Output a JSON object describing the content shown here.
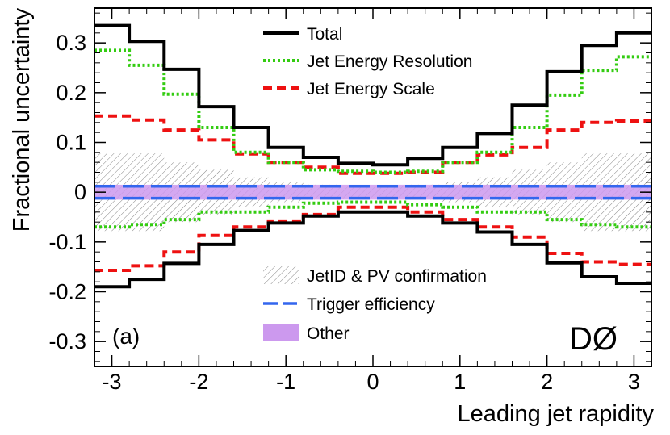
{
  "chart_data": {
    "type": "line",
    "panel_label": "(a)",
    "experiment_label": "DØ",
    "xlabel": "Leading jet rapidity",
    "ylabel": "Fractional uncertainty",
    "xlim": [
      -3.2,
      3.2
    ],
    "ylim": [
      -0.35,
      0.37
    ],
    "xticks": [
      -3,
      -2,
      -1,
      0,
      1,
      2,
      3
    ],
    "yticks": [
      -0.3,
      -0.2,
      -0.1,
      0,
      0.1,
      0.2,
      0.3
    ],
    "ytick_labels": [
      "-0.3",
      "-0.2",
      "-0.1",
      "0",
      "0.1",
      "0.2",
      "0.3"
    ],
    "bin_edges": [
      -3.2,
      -2.8,
      -2.4,
      -2.0,
      -1.6,
      -1.2,
      -0.8,
      -0.4,
      0.0,
      0.4,
      0.8,
      1.2,
      1.6,
      2.0,
      2.4,
      2.8,
      3.2
    ],
    "series": [
      {
        "name": "Total",
        "style": "solid",
        "color": "#000000",
        "upper": [
          0.335,
          0.303,
          0.247,
          0.172,
          0.13,
          0.09,
          0.07,
          0.058,
          0.055,
          0.068,
          0.09,
          0.118,
          0.175,
          0.242,
          0.295,
          0.32
        ],
        "lower": [
          -0.19,
          -0.175,
          -0.143,
          -0.105,
          -0.077,
          -0.062,
          -0.048,
          -0.04,
          -0.04,
          -0.048,
          -0.062,
          -0.08,
          -0.105,
          -0.142,
          -0.17,
          -0.183
        ]
      },
      {
        "name": "Jet Energy Resolution",
        "style": "dotted",
        "color": "#33cc11",
        "upper": [
          0.285,
          0.255,
          0.197,
          0.13,
          0.08,
          0.06,
          0.045,
          0.042,
          0.04,
          0.042,
          0.06,
          0.08,
          0.13,
          0.195,
          0.245,
          0.272
        ],
        "lower": [
          -0.07,
          -0.065,
          -0.055,
          -0.04,
          -0.04,
          -0.03,
          -0.022,
          -0.02,
          -0.02,
          -0.025,
          -0.03,
          -0.04,
          -0.04,
          -0.055,
          -0.065,
          -0.07
        ]
      },
      {
        "name": "Jet Energy Scale",
        "style": "dashed",
        "color": "#ee1111",
        "upper": [
          0.153,
          0.145,
          0.125,
          0.105,
          0.077,
          0.06,
          0.05,
          0.038,
          0.038,
          0.04,
          0.06,
          0.075,
          0.09,
          0.125,
          0.14,
          0.143
        ],
        "lower": [
          -0.157,
          -0.148,
          -0.12,
          -0.087,
          -0.07,
          -0.058,
          -0.045,
          -0.03,
          -0.03,
          -0.04,
          -0.055,
          -0.07,
          -0.09,
          -0.123,
          -0.14,
          -0.145
        ]
      }
    ],
    "bands": [
      {
        "name": "JetID & PV confirmation",
        "style": "hatched",
        "color": "#666666",
        "upper": [
          0.078,
          0.078,
          0.06,
          0.045,
          0.03,
          0.02,
          0.015,
          0.012,
          0.012,
          0.015,
          0.02,
          0.03,
          0.045,
          0.06,
          0.078,
          0.078
        ],
        "lower": [
          -0.078,
          -0.078,
          -0.06,
          -0.045,
          -0.03,
          -0.02,
          -0.015,
          -0.012,
          -0.012,
          -0.015,
          -0.02,
          -0.03,
          -0.045,
          -0.06,
          -0.078,
          -0.078
        ]
      },
      {
        "name": "Other",
        "style": "filled",
        "color": "#cc99ee",
        "upper": 0.015,
        "lower": -0.015
      }
    ],
    "constant_lines": [
      {
        "name": "Trigger efficiency",
        "style": "long-dashed",
        "color": "#3366ee",
        "values": [
          0.012,
          -0.012
        ]
      }
    ],
    "legend": [
      {
        "label": "Total",
        "kind": "line",
        "style": "solid",
        "color": "#000000"
      },
      {
        "label": "Jet Energy Resolution",
        "kind": "line",
        "style": "dotted",
        "color": "#33cc11"
      },
      {
        "label": "Jet Energy Scale",
        "kind": "line",
        "style": "dashed",
        "color": "#ee1111"
      },
      {
        "label": "JetID & PV confirmation",
        "kind": "hatch",
        "style": "hatched",
        "color": "#666666"
      },
      {
        "label": "Trigger efficiency",
        "kind": "line",
        "style": "long-dashed",
        "color": "#3366ee"
      },
      {
        "label": "Other",
        "kind": "fill",
        "style": "filled",
        "color": "#cc99ee"
      }
    ]
  }
}
